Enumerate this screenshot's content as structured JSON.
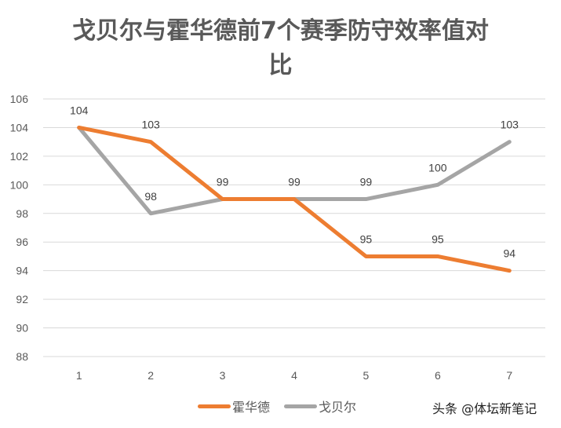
{
  "chart_data": {
    "type": "line",
    "title_line1": "戈贝尔与霍华德前7个赛季防守效率值对",
    "title_line2": "比",
    "categories": [
      "1",
      "2",
      "3",
      "4",
      "5",
      "6",
      "7"
    ],
    "series": [
      {
        "name": "霍华德",
        "color": "#ED7D31",
        "values": [
          104,
          103,
          99,
          99,
          95,
          95,
          94
        ],
        "show_labels": [
          false,
          true,
          false,
          false,
          true,
          true,
          true
        ]
      },
      {
        "name": "戈贝尔",
        "color": "#A5A5A5",
        "values": [
          104,
          98,
          99,
          99,
          99,
          100,
          103
        ],
        "show_labels": [
          true,
          true,
          true,
          true,
          true,
          true,
          true
        ]
      }
    ],
    "ylim": [
      88,
      106
    ],
    "yticks": [
      "88",
      "90",
      "92",
      "94",
      "96",
      "98",
      "100",
      "102",
      "104",
      "106"
    ],
    "grid": true,
    "legend_position": "bottom"
  },
  "watermark": "头条 @体坛新笔记"
}
